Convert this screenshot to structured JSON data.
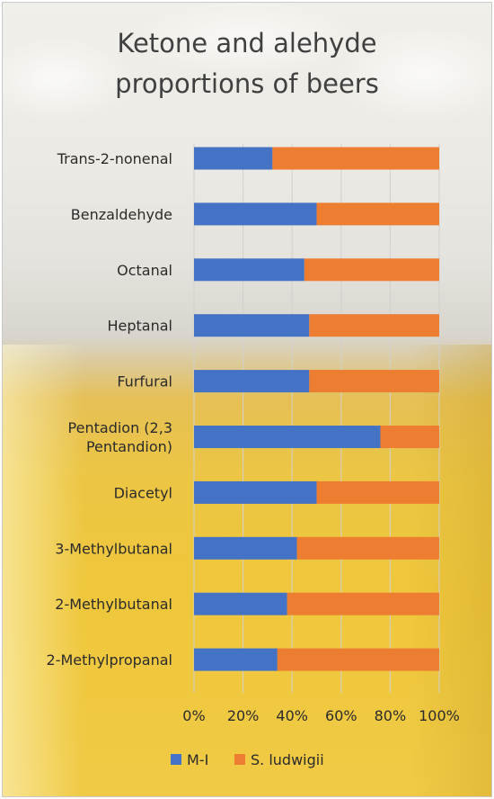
{
  "chart_data": {
    "type": "bar",
    "orientation": "horizontal",
    "stacked": "percent",
    "title_lines": [
      "Ketone and alehyde",
      "proportions of beers"
    ],
    "categories": [
      [
        "Trans-2-nonenal"
      ],
      [
        "Benzaldehyde"
      ],
      [
        "Octanal"
      ],
      [
        "Heptanal"
      ],
      [
        "Furfural"
      ],
      [
        "Pentadion (2,3",
        "Pentandion)"
      ],
      [
        "Diacetyl"
      ],
      [
        "3-Methylbutanal"
      ],
      [
        "2-Methylbutanal"
      ],
      [
        "2-Methylpropanal"
      ]
    ],
    "series": [
      {
        "name": "M-I",
        "color": "#4472c4",
        "values": [
          32,
          50,
          45,
          47,
          47,
          76,
          50,
          42,
          38,
          34
        ]
      },
      {
        "name": "S. ludwigii",
        "color": "#ed7d31",
        "values": [
          68,
          50,
          55,
          53,
          53,
          24,
          50,
          58,
          62,
          66
        ]
      }
    ],
    "x_ticks": [
      "0%",
      "20%",
      "40%",
      "60%",
      "80%",
      "100%"
    ],
    "xlim": [
      0,
      100
    ],
    "grid": true,
    "legend_position": "bottom"
  }
}
